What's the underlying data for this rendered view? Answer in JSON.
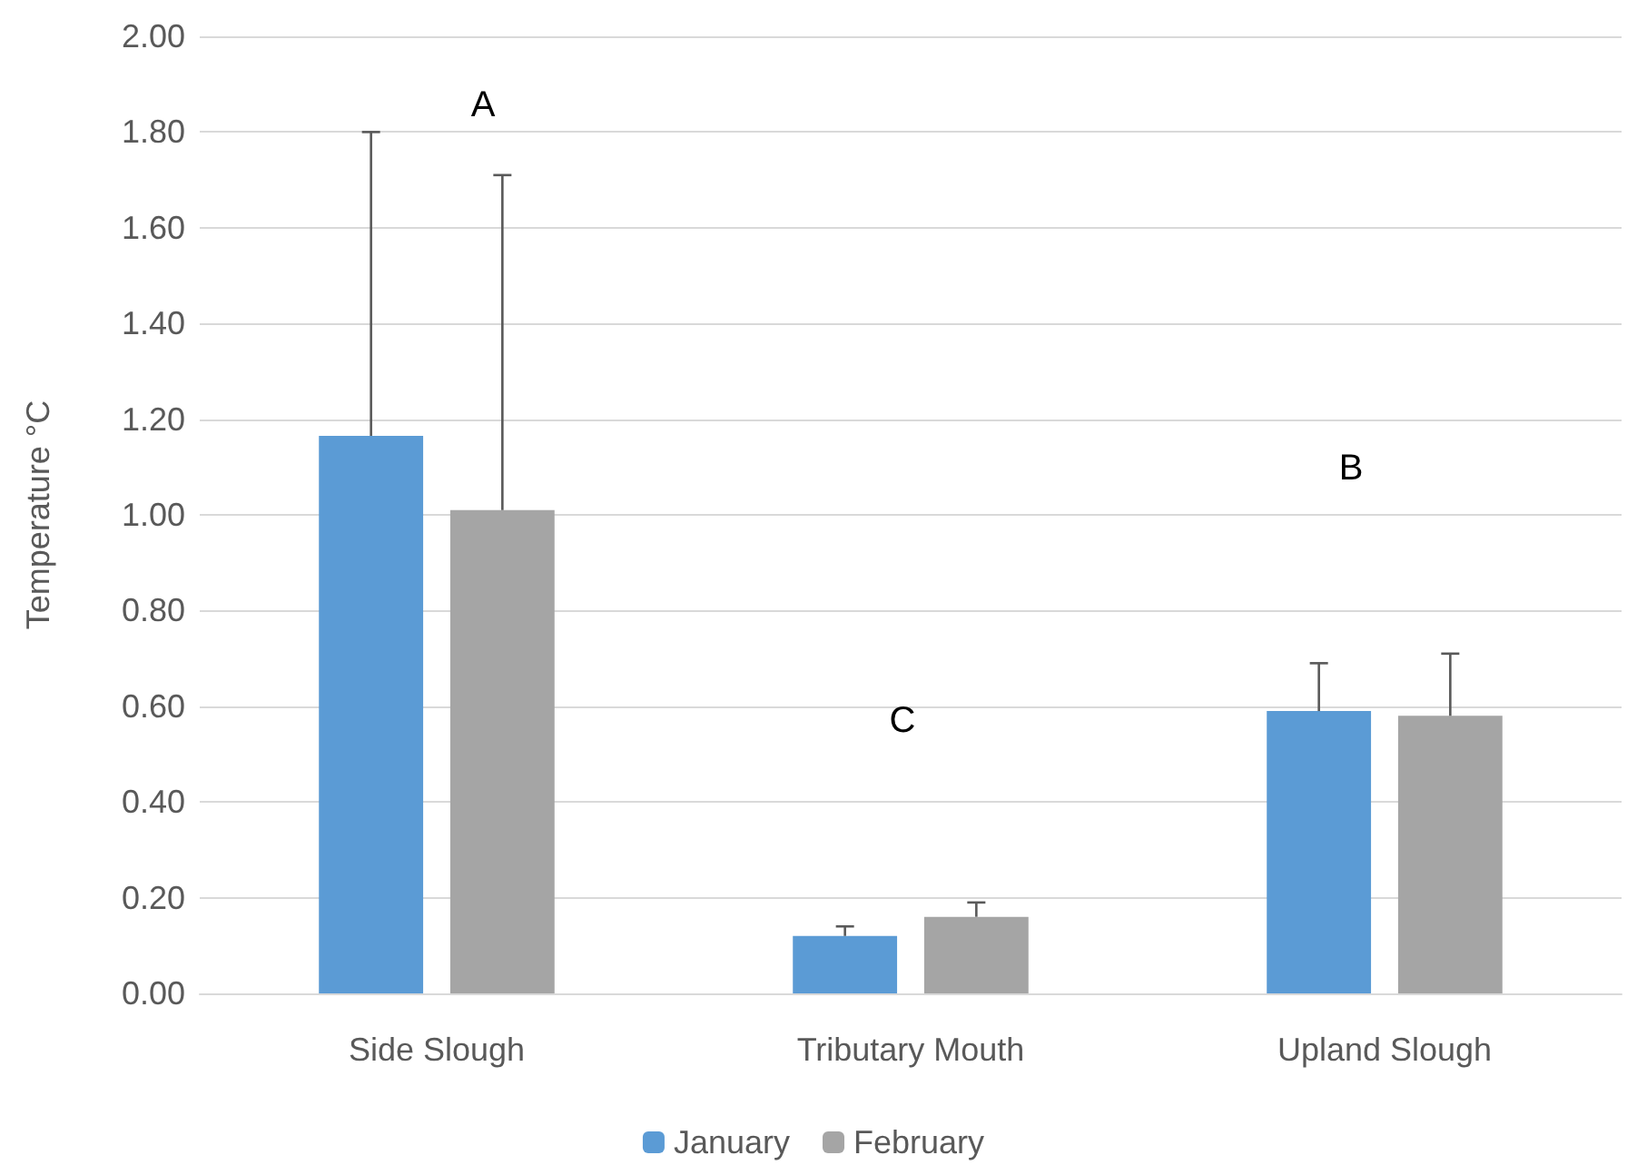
{
  "chart_data": {
    "type": "bar",
    "ylabel": "Temperature °C",
    "categories": [
      "Side Slough",
      "Tributary Mouth",
      "Upland Slough"
    ],
    "series": [
      {
        "name": "January",
        "color": "#5b9bd5",
        "values": [
          1.165,
          0.12,
          0.59
        ],
        "errors": [
          [
            1.165,
            1.8
          ],
          [
            0.12,
            0.14
          ],
          [
            0.59,
            0.69
          ]
        ]
      },
      {
        "name": "February",
        "color": "#a5a5a5",
        "values": [
          1.01,
          0.16,
          0.58
        ],
        "errors": [
          [
            1.01,
            1.71
          ],
          [
            0.16,
            0.19
          ],
          [
            0.58,
            0.71
          ]
        ]
      }
    ],
    "annotations": [
      "A",
      "C",
      "B"
    ],
    "ylim": [
      0,
      2
    ],
    "yticks": [
      {
        "value": 0,
        "label": "0.00"
      },
      {
        "value": 0.2,
        "label": "0.20"
      },
      {
        "value": 0.4,
        "label": "0.40"
      },
      {
        "value": 0.6,
        "label": "0.60"
      },
      {
        "value": 0.8,
        "label": "0.80"
      },
      {
        "value": 1,
        "label": "1.00"
      },
      {
        "value": 1.2,
        "label": "1.20"
      },
      {
        "value": 1.4,
        "label": "1.40"
      },
      {
        "value": 1.6,
        "label": "1.60"
      },
      {
        "value": 1.8,
        "label": "1.80"
      },
      {
        "value": 2,
        "label": "2.00"
      }
    ],
    "grid": "y",
    "legend": "bottom"
  }
}
